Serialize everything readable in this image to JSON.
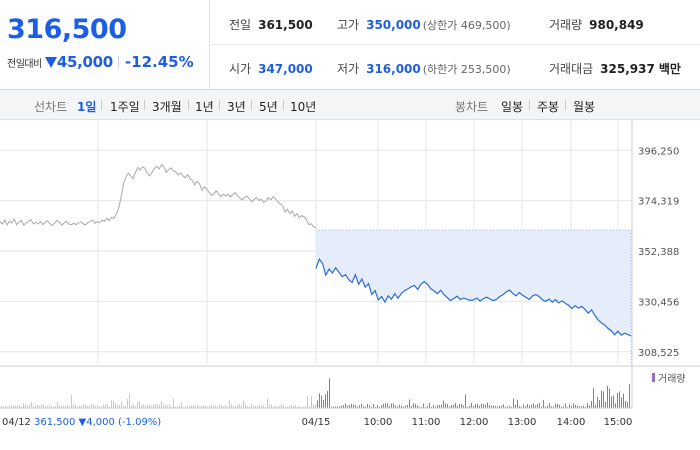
{
  "quote": {
    "price": "316,500",
    "change_label": "전일대비",
    "change_value": "45,000",
    "change_pct": "-12.45%"
  },
  "stats": {
    "prev_close_label": "전일",
    "prev_close": "361,500",
    "high_label": "고가",
    "high": "350,000",
    "upper_limit": "(상한가 469,500)",
    "volume_label": "거래량",
    "volume": "980,849",
    "open_label": "시가",
    "open": "347,000",
    "low_label": "저가",
    "low": "316,000",
    "lower_limit": "(하한가 253,500)",
    "trade_value_label": "거래대금",
    "trade_value": "325,937",
    "trade_value_unit": "백만"
  },
  "toolbar": {
    "line_label": "선차트",
    "line_periods": [
      "1일",
      "1주일",
      "3개월",
      "1년",
      "3년",
      "5년",
      "10년"
    ],
    "active_period": "1일",
    "candle_label": "봉차트",
    "candle_periods": [
      "일봉",
      "주봉",
      "월봉"
    ]
  },
  "chart_data": {
    "type": "line",
    "y_ticks": [
      "396,250",
      "374,319",
      "352,388",
      "330,456",
      "308,525"
    ],
    "y_tick_values": [
      396250,
      374319,
      352388,
      330456,
      308525
    ],
    "ylim": [
      303200,
      401600
    ],
    "x_ticks": [
      "04/15",
      "10:00",
      "11:00",
      "12:00",
      "13:00",
      "14:00",
      "15:00"
    ],
    "volume_legend": "거래량",
    "prev_day_info": {
      "date": "04/12",
      "close": "361,500",
      "change": "▼4,000 (-1.09%)"
    },
    "prev_close_value": 361500,
    "colors": {
      "prev_line": "#a9a9a9",
      "today_line": "#2d6bd6",
      "area_fill": "#e5edfb",
      "prev_volume": "#c9c9c9",
      "today_volume": "#8e6fc1",
      "down": "#1d5ee6"
    },
    "series": [
      {
        "values": [
          365200,
          364100,
          366000,
          363800,
          365400,
          364600,
          366300,
          363900,
          364900,
          365800,
          363600,
          364700,
          365200,
          366100,
          364200,
          365000,
          364100,
          365300,
          363900,
          364800,
          365600,
          364300,
          363500,
          364400,
          365800,
          364900,
          363600,
          364700,
          365300,
          364100,
          363800,
          364500,
          363900,
          364600,
          365100,
          364200,
          363700,
          364800,
          365300,
          365900,
          364500,
          365200,
          364700,
          365900,
          365300,
          366700,
          365600,
          367100,
          366500,
          368600,
          371200,
          376100,
          381800,
          384500,
          386300,
          385100,
          383900,
          386500,
          388800,
          387600,
          389100,
          388400,
          386200,
          385100,
          386700,
          388300,
          389300,
          388100,
          390100,
          388900,
          386600,
          387900,
          388600,
          387200,
          386900,
          385500,
          386400,
          385100,
          384300,
          385600,
          383800,
          383100,
          381200,
          382700,
          381600,
          378800,
          380300,
          379500,
          377900,
          376600,
          377400,
          378600,
          377300,
          376100,
          377100,
          376400,
          377100,
          375900,
          376900,
          377800,
          376400,
          375400,
          374600,
          375800,
          376300,
          375100,
          373800,
          374900,
          375600,
          374400,
          374900,
          373600,
          374200,
          375600,
          374700,
          376100,
          374900,
          373800,
          372900,
          372100,
          369400,
          370600,
          368700,
          369800,
          367500,
          368700,
          366900,
          367800,
          367300,
          365900,
          363900,
          364300,
          362900,
          362600
        ]
      },
      {
        "values": [
          344800,
          348900,
          346900,
          341800,
          344500,
          342800,
          345100,
          343100,
          341200,
          342100,
          339900,
          338700,
          342100,
          337900,
          340200,
          336700,
          338200,
          333500,
          335100,
          331100,
          332600,
          330200,
          332900,
          331400,
          333800,
          331800,
          333900,
          335100,
          335900,
          336800,
          337400,
          335700,
          338000,
          339100,
          337800,
          336000,
          335000,
          333800,
          335300,
          333400,
          332100,
          330800,
          331700,
          332700,
          331300,
          331900,
          331400,
          330900,
          331100,
          331900,
          330600,
          331600,
          332300,
          331500,
          330800,
          331300,
          332600,
          333400,
          334600,
          335400,
          333800,
          332900,
          334300,
          333100,
          332200,
          331300,
          332900,
          333400,
          332600,
          331200,
          330400,
          331500,
          330100,
          331200,
          329800,
          330700,
          329600,
          328700,
          327300,
          328600,
          327500,
          328300,
          326900,
          325300,
          326700,
          324300,
          322400,
          321100,
          320100,
          318700,
          317700,
          315900,
          317500,
          315800,
          316600,
          316100,
          315400
        ]
      }
    ]
  }
}
